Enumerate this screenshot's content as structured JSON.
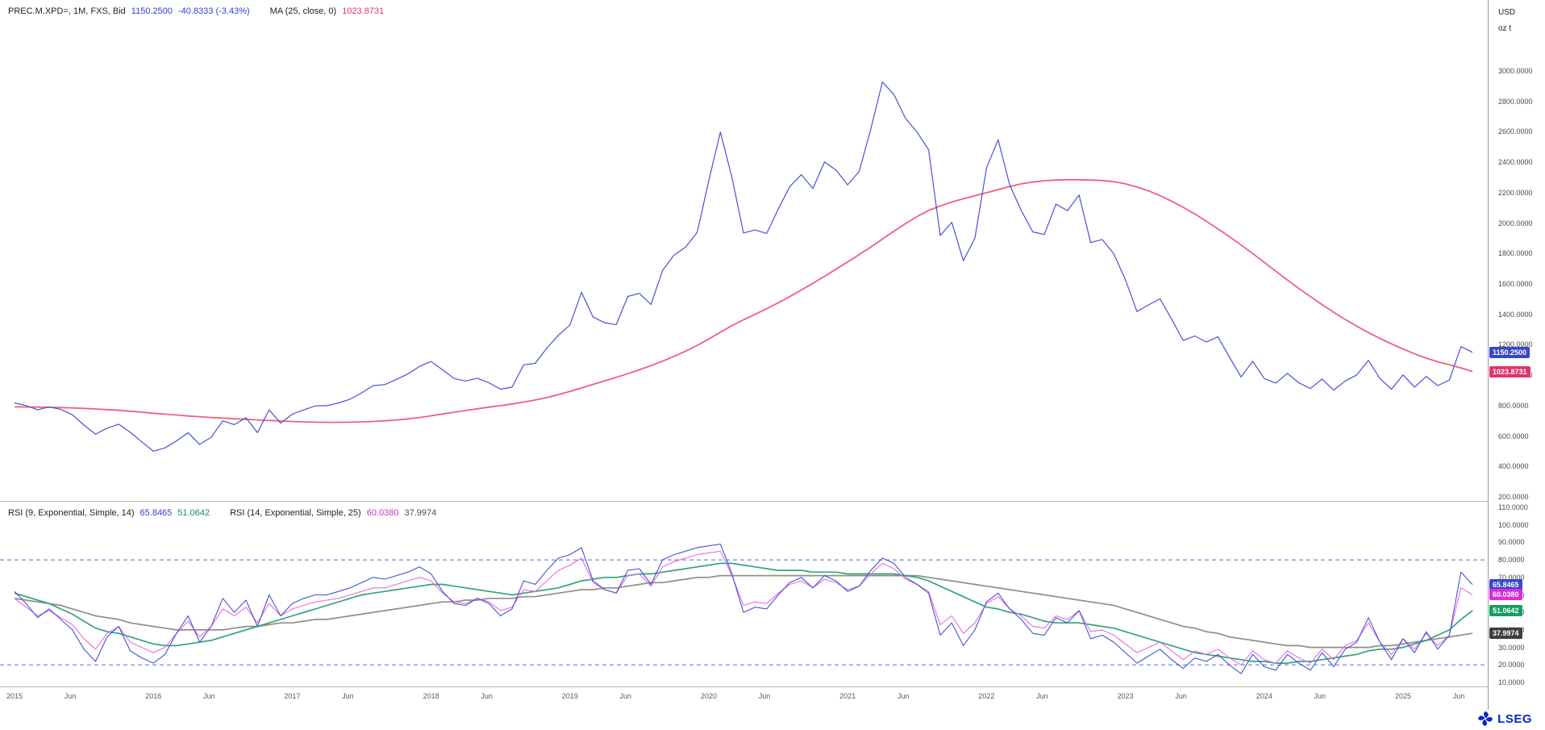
{
  "app": {
    "brand": "LSEG"
  },
  "price_pane": {
    "legend": {
      "instrument": "PREC.M.XPD=, 1M, FXS, Bid",
      "last": "1150.2500",
      "change": "-40.8333 (-3.43%)",
      "ma_label": "MA (25, close, 0)",
      "ma_value": "1023.8731"
    }
  },
  "rsi_pane": {
    "legend": {
      "rsi1_label": "RSI (9, Exponential, Simple, 14)",
      "rsi1_value": "65.8465",
      "rsi1_ma_value": "51.0642",
      "rsi2_label": "RSI (14, Exponential, Simple, 25)",
      "rsi2_value": "60.0380",
      "rsi2_ma_value": "37.9974"
    }
  },
  "axis": {
    "unit_top": "USD",
    "unit_bottom": "oz t",
    "badges": [
      {
        "pane": "price",
        "value": 1150.25,
        "label": "1150.2500",
        "color": "#3a46cc",
        "name": "last-price-badge"
      },
      {
        "pane": "price",
        "value": 1023.8731,
        "label": "1023.8731",
        "color": "#e1346a",
        "name": "ma-value-badge"
      },
      {
        "pane": "rsi",
        "value": 65.8465,
        "label": "65.8465",
        "color": "#3a46cc",
        "name": "rsi9-value-badge"
      },
      {
        "pane": "rsi",
        "value": 60.038,
        "label": "60.0380",
        "color": "#dd2cdd",
        "name": "rsi14-value-badge"
      },
      {
        "pane": "rsi",
        "value": 51.0642,
        "label": "51.0642",
        "color": "#12a05f",
        "name": "rsi9-ma-badge"
      },
      {
        "pane": "rsi",
        "value": 37.9974,
        "label": "37.9974",
        "color": "#3f3f3f",
        "name": "rsi14-ma-badge"
      }
    ]
  },
  "chart_data": [
    {
      "type": "line",
      "title": "PREC.M.XPD= 1M FXS Bid with MA(25)",
      "x_unit": "month",
      "x_range": [
        "2015-01",
        "2025-07"
      ],
      "ylabel": "USD oz t",
      "ylim": [
        200,
        3000
      ],
      "grid": false,
      "legend_position": "top-left",
      "y_ticks": [
        3000,
        2800,
        2600,
        2400,
        2200,
        2000,
        1800,
        1600,
        1400,
        1200,
        1000,
        800,
        600,
        400,
        200
      ],
      "x_ticks": [
        {
          "i": 0,
          "label": "2015"
        },
        {
          "i": 5,
          "label": "Jun"
        },
        {
          "i": 12,
          "label": "2016"
        },
        {
          "i": 17,
          "label": "Jun"
        },
        {
          "i": 24,
          "label": "2017"
        },
        {
          "i": 29,
          "label": "Jun"
        },
        {
          "i": 36,
          "label": "2018"
        },
        {
          "i": 41,
          "label": "Jun"
        },
        {
          "i": 48,
          "label": "2019"
        },
        {
          "i": 53,
          "label": "Jun"
        },
        {
          "i": 60,
          "label": "2020"
        },
        {
          "i": 65,
          "label": "Jun"
        },
        {
          "i": 72,
          "label": "2021"
        },
        {
          "i": 77,
          "label": "Jun"
        },
        {
          "i": 84,
          "label": "2022"
        },
        {
          "i": 89,
          "label": "Jun"
        },
        {
          "i": 96,
          "label": "2023"
        },
        {
          "i": 101,
          "label": "Jun"
        },
        {
          "i": 108,
          "label": "2024"
        },
        {
          "i": 113,
          "label": "Jun"
        },
        {
          "i": 120,
          "label": "2025"
        },
        {
          "i": 125,
          "label": "Jun"
        }
      ],
      "series": [
        {
          "name": "Bid",
          "color": "#4653d4",
          "width": 1.2,
          "last": 1150.25,
          "values": [
            818,
            800,
            772,
            792,
            775,
            740,
            672,
            612,
            652,
            678,
            625,
            562,
            500,
            522,
            568,
            622,
            545,
            592,
            700,
            675,
            720,
            622,
            772,
            684,
            744,
            772,
            798,
            800,
            818,
            842,
            884,
            932,
            938,
            972,
            1008,
            1058,
            1090,
            1035,
            978,
            962,
            980,
            950,
            908,
            922,
            1068,
            1078,
            1178,
            1262,
            1330,
            1545,
            1382,
            1345,
            1332,
            1518,
            1538,
            1465,
            1688,
            1790,
            1843,
            1938,
            2280,
            2598,
            2300,
            1935,
            1955,
            1932,
            2092,
            2240,
            2318,
            2228,
            2402,
            2348,
            2252,
            2340,
            2618,
            2928,
            2845,
            2688,
            2598,
            2482,
            1918,
            2005,
            1752,
            1902,
            2362,
            2548,
            2252,
            2082,
            1942,
            1925,
            2125,
            2082,
            2185,
            1872,
            1892,
            1798,
            1628,
            1418,
            1462,
            1502,
            1368,
            1228,
            1258,
            1218,
            1252,
            1118,
            988,
            1092,
            978,
            948,
            1012,
            950,
            912,
            975,
            902,
            962,
            1002,
            1098,
            978,
            908,
            1002,
            922,
            992,
            932,
            968,
            1188,
            1150.25
          ]
        },
        {
          "name": "MA (25, close, 0)",
          "color": "#ef5f7e",
          "width": 1.8,
          "last": 1023.8731,
          "values": [
            792,
            791,
            790,
            789,
            787,
            785,
            782,
            778,
            774,
            769,
            763,
            757,
            750,
            744,
            738,
            732,
            727,
            722,
            718,
            714,
            710,
            706,
            702,
            699,
            696,
            693,
            691,
            690,
            690,
            691,
            693,
            696,
            700,
            706,
            713,
            722,
            733,
            745,
            757,
            768,
            779,
            790,
            800,
            811,
            823,
            837,
            853,
            872,
            893,
            916,
            940,
            963,
            986,
            1010,
            1036,
            1063,
            1092,
            1124,
            1158,
            1196,
            1238,
            1283,
            1326,
            1364,
            1400,
            1437,
            1476,
            1517,
            1560,
            1604,
            1650,
            1697,
            1745,
            1793,
            1843,
            1895,
            1947,
            1997,
            2043,
            2083,
            2113,
            2138,
            2160,
            2180,
            2200,
            2220,
            2240,
            2258,
            2270,
            2278,
            2283,
            2285,
            2285,
            2283,
            2280,
            2272,
            2258,
            2238,
            2212,
            2180,
            2144,
            2104,
            2060,
            2012,
            1962,
            1910,
            1856,
            1800,
            1742,
            1684,
            1626,
            1570,
            1516,
            1464,
            1414,
            1366,
            1322,
            1280,
            1242,
            1206,
            1172,
            1140,
            1112,
            1088,
            1068,
            1048,
            1023.8731
          ]
        }
      ]
    },
    {
      "type": "line",
      "title": "RSI pane",
      "x_unit": "month",
      "x_range": [
        "2015-01",
        "2025-07"
      ],
      "ylim": [
        10,
        110
      ],
      "grid": false,
      "y_ticks": [
        110,
        100,
        90,
        80,
        70,
        60,
        50,
        40,
        30,
        20,
        10
      ],
      "thresholds": [
        80,
        20
      ],
      "threshold_color": "#5b68dd",
      "series": [
        {
          "name": "RSI (9, Exponential)",
          "color": "#4653d4",
          "width": 1.1,
          "last": 65.8465,
          "values": [
            62,
            55,
            47,
            52,
            46,
            40,
            29,
            22,
            36,
            42,
            28,
            24,
            21,
            26,
            38,
            48,
            33,
            42,
            58,
            50,
            57,
            42,
            60,
            48,
            55,
            58,
            60,
            60,
            62,
            64,
            67,
            70,
            69,
            71,
            73,
            76,
            72,
            62,
            55,
            54,
            58,
            55,
            48,
            52,
            68,
            66,
            74,
            81,
            83,
            87,
            68,
            63,
            61,
            74,
            75,
            66,
            80,
            83,
            85,
            87,
            88,
            89,
            72,
            50,
            53,
            52,
            60,
            67,
            70,
            64,
            71,
            68,
            62,
            65,
            74,
            81,
            78,
            70,
            66,
            61,
            37,
            44,
            31,
            40,
            56,
            61,
            52,
            46,
            38,
            37,
            47,
            44,
            51,
            35,
            37,
            33,
            27,
            21,
            25,
            29,
            23,
            18,
            24,
            22,
            26,
            20,
            15,
            26,
            19,
            17,
            26,
            21,
            17,
            27,
            19,
            29,
            33,
            47,
            33,
            23,
            35,
            27,
            39,
            29,
            37,
            73,
            65.8465
          ]
        },
        {
          "name": "RSI 9 MA (Simple, 14)",
          "color": "#35a37c",
          "width": 1.7,
          "last": 51.0642,
          "values": [
            61,
            59,
            57,
            55,
            52,
            49,
            45,
            41,
            39,
            38,
            36,
            34,
            32,
            31,
            31,
            32,
            33,
            34,
            36,
            38,
            40,
            42,
            44,
            46,
            48,
            50,
            52,
            54,
            56,
            58,
            60,
            61,
            62,
            63,
            64,
            65,
            66,
            66,
            65,
            64,
            63,
            62,
            61,
            60,
            61,
            62,
            63,
            64,
            66,
            68,
            69,
            70,
            70,
            71,
            72,
            72,
            73,
            74,
            75,
            76,
            77,
            78,
            78,
            77,
            76,
            75,
            74,
            74,
            74,
            73,
            73,
            73,
            72,
            72,
            72,
            72,
            72,
            71,
            70,
            68,
            65,
            62,
            59,
            56,
            53,
            52,
            50,
            49,
            47,
            45,
            44,
            44,
            44,
            43,
            42,
            41,
            39,
            37,
            35,
            33,
            31,
            29,
            27,
            26,
            25,
            24,
            23,
            22,
            22,
            21,
            21,
            22,
            22,
            23,
            24,
            25,
            26,
            28,
            29,
            29,
            30,
            32,
            34,
            37,
            40,
            46,
            51.0642
          ]
        },
        {
          "name": "RSI (14, Exponential)",
          "color": "#e66de0",
          "width": 1.1,
          "last": 60.038,
          "values": [
            58,
            53,
            48,
            51,
            47,
            43,
            35,
            29,
            38,
            42,
            33,
            30,
            27,
            30,
            38,
            45,
            36,
            42,
            52,
            48,
            53,
            44,
            55,
            48,
            52,
            54,
            56,
            57,
            58,
            60,
            62,
            64,
            64,
            66,
            68,
            70,
            68,
            61,
            56,
            55,
            58,
            56,
            51,
            53,
            63,
            62,
            68,
            74,
            77,
            81,
            67,
            63,
            61,
            71,
            72,
            65,
            76,
            79,
            81,
            83,
            84,
            85,
            71,
            54,
            56,
            55,
            61,
            66,
            68,
            64,
            69,
            67,
            63,
            65,
            72,
            78,
            75,
            69,
            66,
            62,
            43,
            48,
            38,
            44,
            55,
            59,
            52,
            48,
            42,
            41,
            48,
            46,
            51,
            39,
            40,
            37,
            32,
            27,
            30,
            33,
            28,
            23,
            28,
            26,
            29,
            24,
            20,
            28,
            23,
            21,
            28,
            24,
            21,
            29,
            23,
            31,
            34,
            44,
            33,
            26,
            35,
            29,
            38,
            31,
            37,
            64,
            60.038
          ]
        },
        {
          "name": "RSI 14 MA (Simple, 25)",
          "color": "#8f8f87",
          "width": 1.7,
          "last": 37.9974,
          "values": [
            58,
            57,
            56,
            55,
            54,
            52,
            50,
            48,
            47,
            46,
            44,
            43,
            42,
            41,
            40,
            40,
            40,
            40,
            40,
            41,
            42,
            42,
            43,
            44,
            44,
            45,
            46,
            46,
            47,
            48,
            49,
            50,
            51,
            52,
            53,
            54,
            55,
            56,
            56,
            57,
            57,
            58,
            58,
            58,
            59,
            59,
            60,
            61,
            62,
            63,
            63,
            64,
            64,
            65,
            66,
            67,
            67,
            68,
            69,
            70,
            70,
            71,
            71,
            71,
            71,
            71,
            71,
            71,
            71,
            71,
            71,
            71,
            71,
            71,
            71,
            71,
            71,
            71,
            71,
            70,
            69,
            68,
            67,
            66,
            65,
            64,
            63,
            62,
            61,
            60,
            59,
            58,
            57,
            56,
            55,
            54,
            52,
            50,
            48,
            46,
            44,
            42,
            41,
            39,
            38,
            36,
            35,
            34,
            33,
            32,
            31,
            31,
            30,
            30,
            30,
            30,
            30,
            30,
            31,
            31,
            32,
            33,
            34,
            35,
            36,
            37,
            37.9974
          ]
        }
      ]
    }
  ]
}
